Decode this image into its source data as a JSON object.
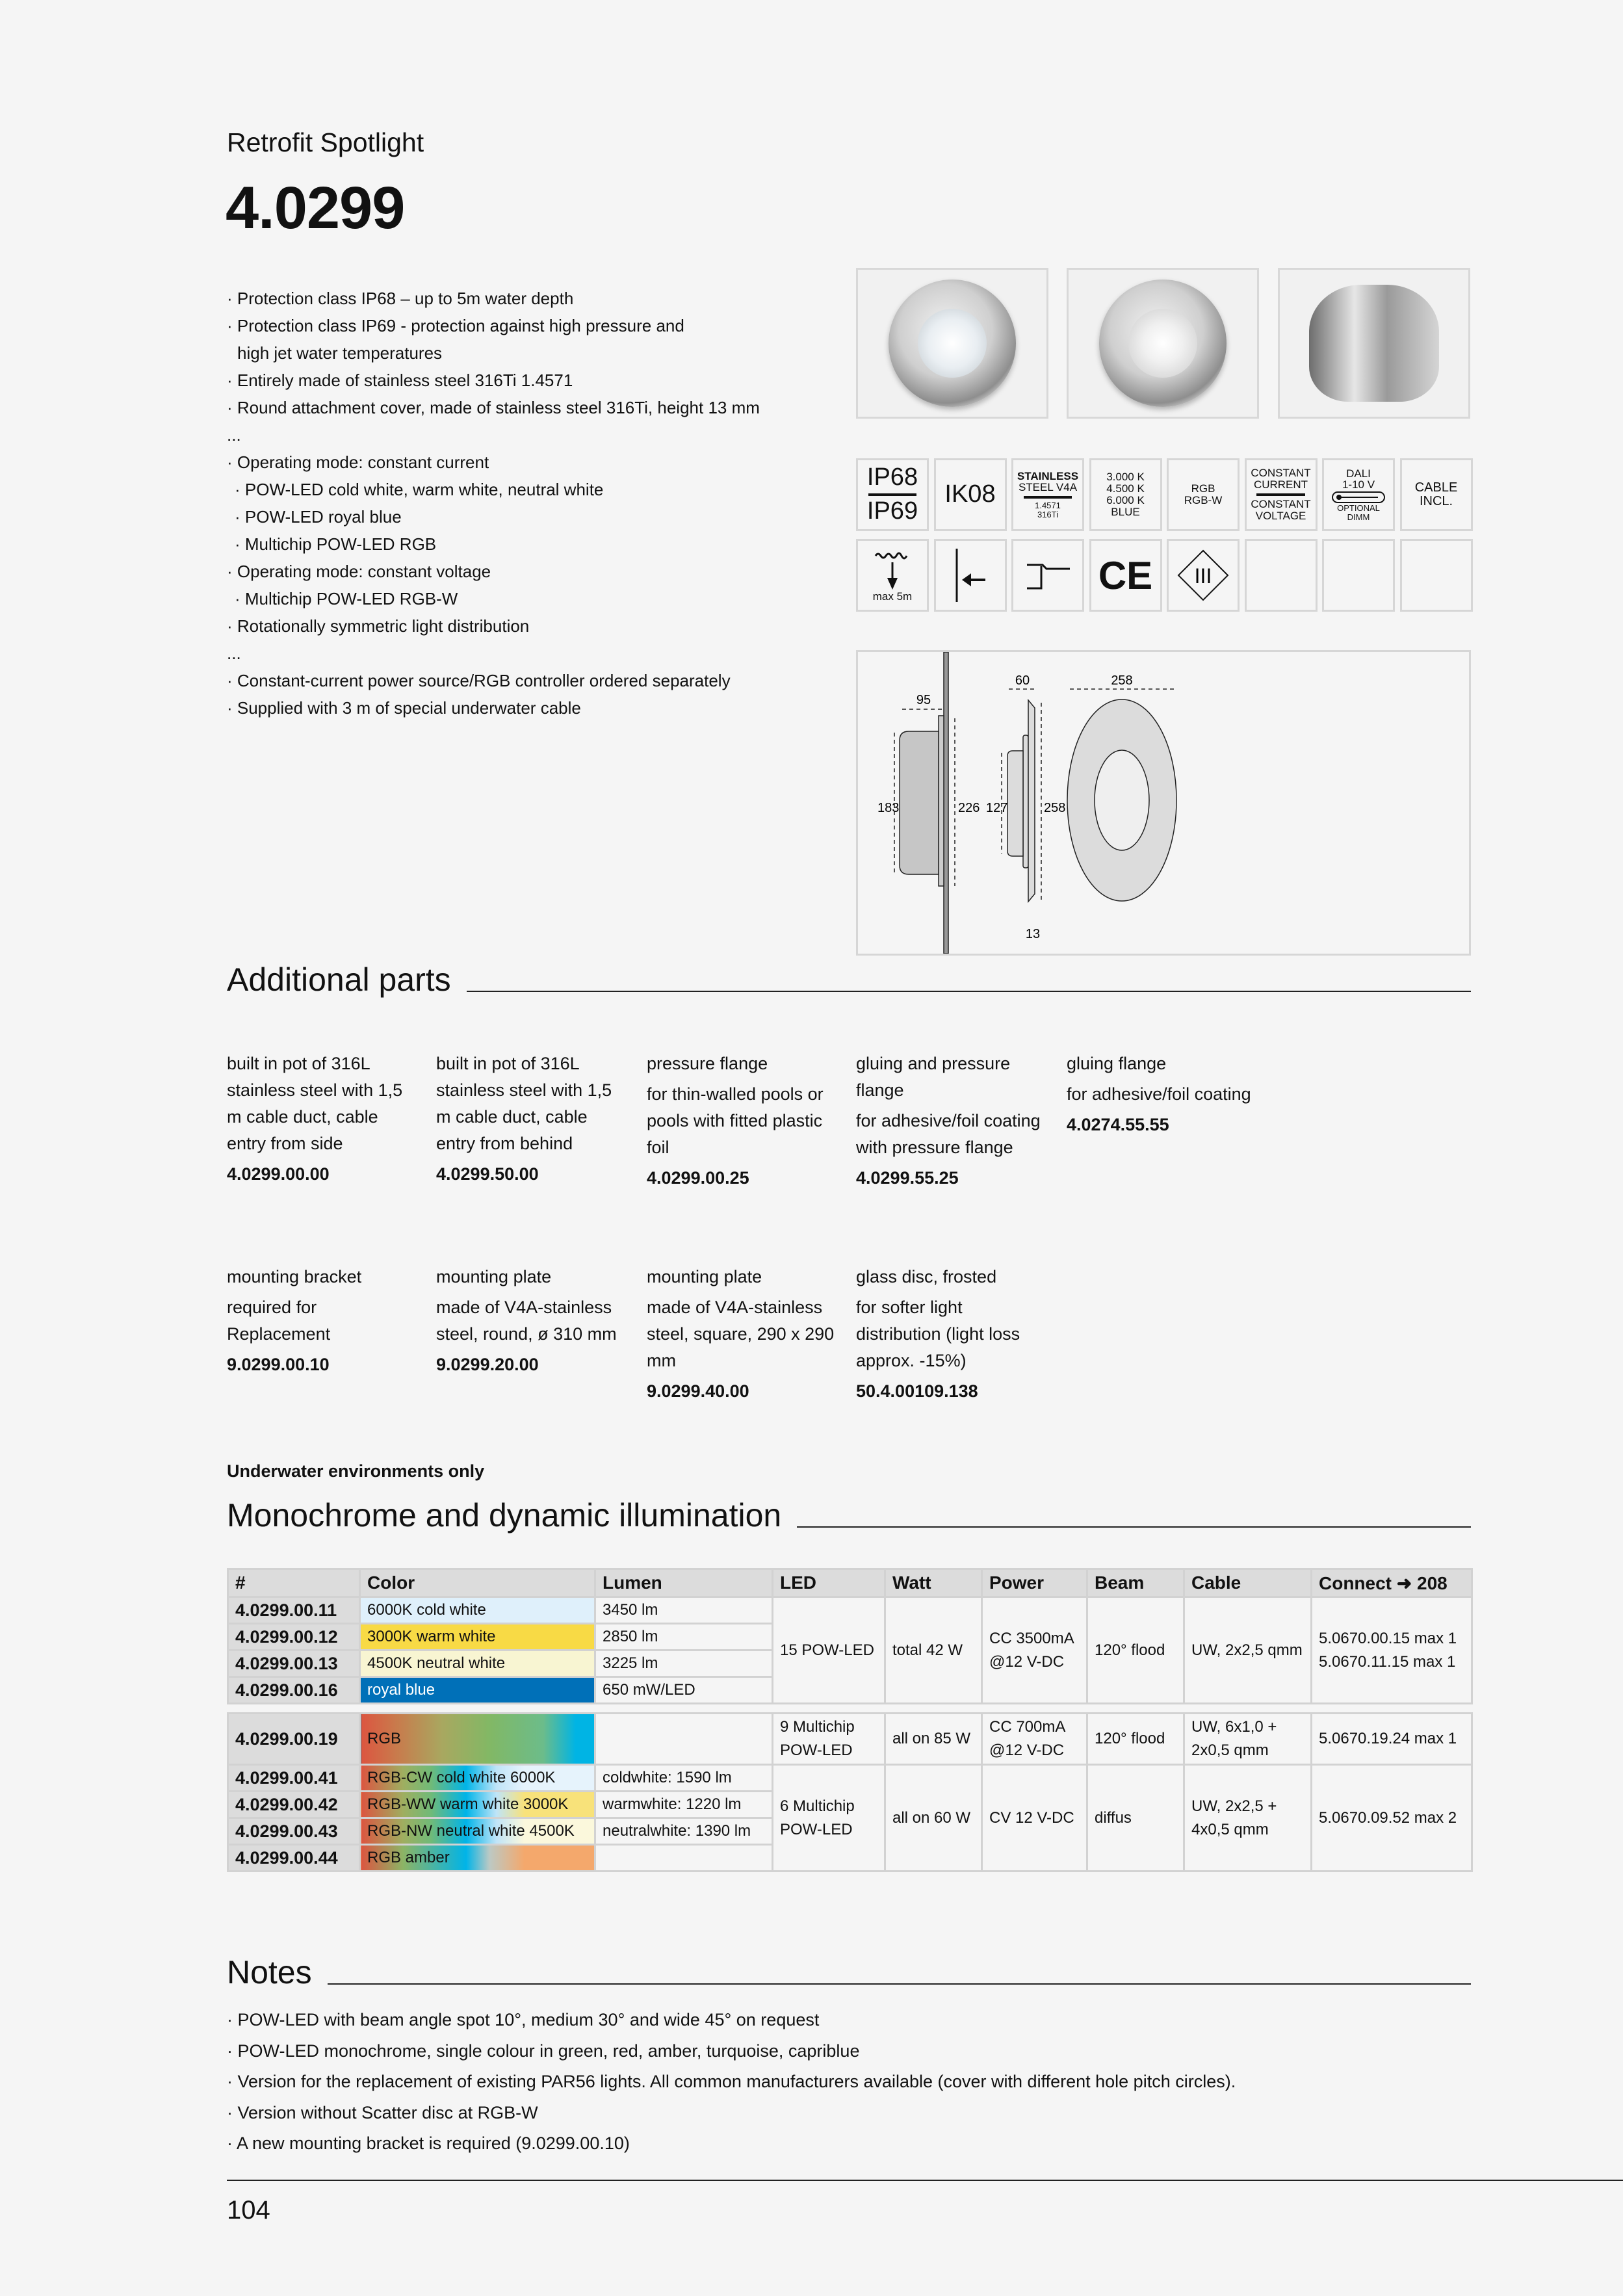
{
  "header": {
    "subtitle": "Retrofit Spotlight",
    "title": "4.0299"
  },
  "features": [
    {
      "text": "· Protection class IP68 – up to 5m water depth",
      "level": 0
    },
    {
      "text": "· Protection class IP69 - protection against high pressure and",
      "level": 0
    },
    {
      "text": "high jet water temperatures",
      "level": 2
    },
    {
      "text": "· Entirely made of stainless steel 316Ti 1.4571",
      "level": 0
    },
    {
      "text": "· Round attachment cover, made of stainless steel 316Ti, height 13 mm",
      "level": 0
    },
    {
      "text": "...",
      "level": 0
    },
    {
      "text": "· Operating mode: constant current",
      "level": 0
    },
    {
      "text": "· POW-LED cold white, warm white, neutral white",
      "level": 1
    },
    {
      "text": "· POW-LED royal blue",
      "level": 1
    },
    {
      "text": "· Multichip POW-LED RGB",
      "level": 1
    },
    {
      "text": "· Operating mode: constant voltage",
      "level": 0
    },
    {
      "text": "· Multichip POW-LED RGB-W",
      "level": 1
    },
    {
      "text": "· Rotationally symmetric light distribution",
      "level": 0
    },
    {
      "text": "...",
      "level": 0
    },
    {
      "text": "· Constant-current power source/RGB controller ordered separately",
      "level": 0
    },
    {
      "text": "· Supplied with 3 m of special underwater cable",
      "level": 0
    }
  ],
  "icons": {
    "ip": {
      "top": "IP68",
      "bottom": "IP69"
    },
    "ik": "IK08",
    "steel": {
      "l1": "STAINLESS",
      "l2": "STEEL V4A",
      "l3": "1.4571",
      "l4": "316Ti"
    },
    "kelvin": [
      "3.000 K",
      "4.500 K",
      "6.000 K",
      "BLUE"
    ],
    "rgb": [
      "RGB",
      "RGB-W"
    ],
    "mode": {
      "top1": "CONSTANT",
      "top2": "CURRENT",
      "bot1": "CONSTANT",
      "bot2": "VOLTAGE"
    },
    "dali": {
      "l1": "DALI",
      "l2": "1-10 V",
      "l3": "OPTIONAL",
      "l4": "DIMM"
    },
    "cable": [
      "CABLE",
      "INCL."
    ],
    "depth": "max 5m",
    "ce": "CE",
    "class3": "III"
  },
  "dimensions": {
    "pot_depth": "95",
    "pot_height": "183",
    "flange_height": "226",
    "spot_depth": "60",
    "spot_body": "127",
    "cover_height": "258",
    "cover_thickness": "13",
    "cover_diameter": "258"
  },
  "additional_parts": {
    "heading": "Additional parts",
    "items": [
      {
        "name": "built in pot of 316L stainless steel with 1,5 m cable duct, cable entry from side",
        "desc": "",
        "code": "4.0299.00.00"
      },
      {
        "name": "built in pot of 316L stainless steel with 1,5 m cable duct, cable entry from behind",
        "desc": "",
        "code": "4.0299.50.00"
      },
      {
        "name": "pressure flange",
        "desc": "for thin-walled pools or pools with fitted plastic foil",
        "code": "4.0299.00.25"
      },
      {
        "name": "gluing and pressure flange",
        "desc": "for adhesive/foil coating with pressure flange",
        "code": "4.0299.55.25"
      },
      {
        "name": "gluing flange",
        "desc": "for adhesive/foil coating",
        "code": "4.0274.55.55"
      },
      {
        "name": "mounting bracket",
        "desc": "required for Replacement",
        "code": "9.0299.00.10"
      },
      {
        "name": "mounting plate",
        "desc": "made of V4A-stainless steel, round, ø 310 mm",
        "code": "9.0299.20.00"
      },
      {
        "name": "mounting plate",
        "desc": "made of V4A-stainless steel, square, 290 x 290 mm",
        "code": "9.0299.40.00"
      },
      {
        "name": "glass disc, frosted",
        "desc": "for softer light distribution (light loss approx. -15%)",
        "code": "50.4.00109.138"
      }
    ]
  },
  "illumination": {
    "note": "Underwater environments only",
    "heading": "Monochrome and dynamic illumination",
    "columns": [
      "#",
      "Color",
      "Lumen",
      "LED",
      "Watt",
      "Power",
      "Beam",
      "Cable",
      "Connect ➜ 208"
    ],
    "group1": {
      "rows": [
        {
          "code": "4.0299.00.11",
          "color": "6000K cold white",
          "lumen": "3450 lm",
          "bg": "#dff0fb"
        },
        {
          "code": "4.0299.00.12",
          "color": "3000K warm white",
          "lumen": "2850 lm",
          "bg": "#f8da45"
        },
        {
          "code": "4.0299.00.13",
          "color": "4500K neutral white",
          "lumen": "3225 lm",
          "bg": "#f8f5d2"
        },
        {
          "code": "4.0299.00.16",
          "color": "royal blue",
          "lumen": "650 mW/LED",
          "bg": "#0070b8"
        }
      ],
      "led": "15 POW-LED",
      "watt": "total 42 W",
      "power": "CC 3500mA @12 V-DC",
      "beam": "120° flood",
      "cable": "UW, 2x2,5 qmm",
      "connect": [
        "5.0670.00.15 max 1",
        "5.0670.11.15 max 1"
      ]
    },
    "group2": {
      "code": "4.0299.00.19",
      "color": "RGB",
      "lumen": "",
      "led": "9 Multichip POW-LED",
      "watt": "all on 85 W",
      "power": "CC 700mA @12 V-DC",
      "beam": "120° flood",
      "cable": "UW, 6x1,0 + 2x0,5 qmm",
      "connect": "5.0670.19.24 max 1"
    },
    "group3": {
      "rows": [
        {
          "code": "4.0299.00.41",
          "color": "RGB-CW cold white 6000K",
          "lumen": "coldwhite: 1590 lm"
        },
        {
          "code": "4.0299.00.42",
          "color": "RGB-WW warm white 3000K",
          "lumen": "warmwhite: 1220 lm"
        },
        {
          "code": "4.0299.00.43",
          "color": "RGB-NW neutral white 4500K",
          "lumen": "neutralwhite: 1390 lm"
        },
        {
          "code": "4.0299.00.44",
          "color": "RGB amber",
          "lumen": ""
        }
      ],
      "led": "6 Multichip POW-LED",
      "watt": "all on 60 W",
      "power": "CV 12 V-DC",
      "beam": "diffus",
      "cable": "UW, 2x2,5 + 4x0,5 qmm",
      "connect": "5.0670.09.52 max 2"
    }
  },
  "notes": {
    "heading": "Notes",
    "items": [
      "· POW-LED with beam angle spot 10°, medium 30° and wide 45° on request",
      "· POW-LED monochrome, single colour in green, red, amber, turquoise, capriblue",
      "· Version for the replacement of existing PAR56 lights. All common manufacturers available (cover with different hole pitch circles).",
      "· Version without Scatter disc at RGB-W",
      "· A new mounting bracket is required (9.0299.00.10)"
    ]
  },
  "page_number": "104"
}
